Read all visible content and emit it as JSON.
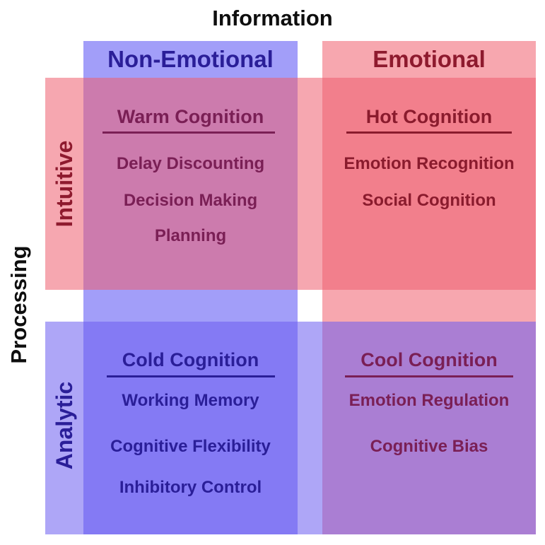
{
  "axes": {
    "top_title": "Information",
    "left_title": "Processing",
    "columns": [
      "Non-Emotional",
      "Emotional"
    ],
    "rows": [
      "Intuitive",
      "Analytic"
    ]
  },
  "quadrants": {
    "warm": {
      "title": "Warm Cognition",
      "items": [
        "Delay Discounting",
        "Decision Making",
        "Planning"
      ]
    },
    "hot": {
      "title": "Hot Cognition",
      "items": [
        "Emotion Recognition",
        "Social Cognition"
      ]
    },
    "cold": {
      "title": "Cold Cognition",
      "items": [
        "Working Memory",
        "Cognitive Flexibility",
        "Inhibitory Control"
      ]
    },
    "cool": {
      "title": "Cool Cognition",
      "items": [
        "Emotion Regulation",
        "Cognitive Bias"
      ]
    }
  },
  "colors": {
    "blue_text": "#2a1e98",
    "red_text": "#8e1a2e",
    "purple_text": "#7a1f55",
    "dark_red_text": "#8a1b2d"
  }
}
